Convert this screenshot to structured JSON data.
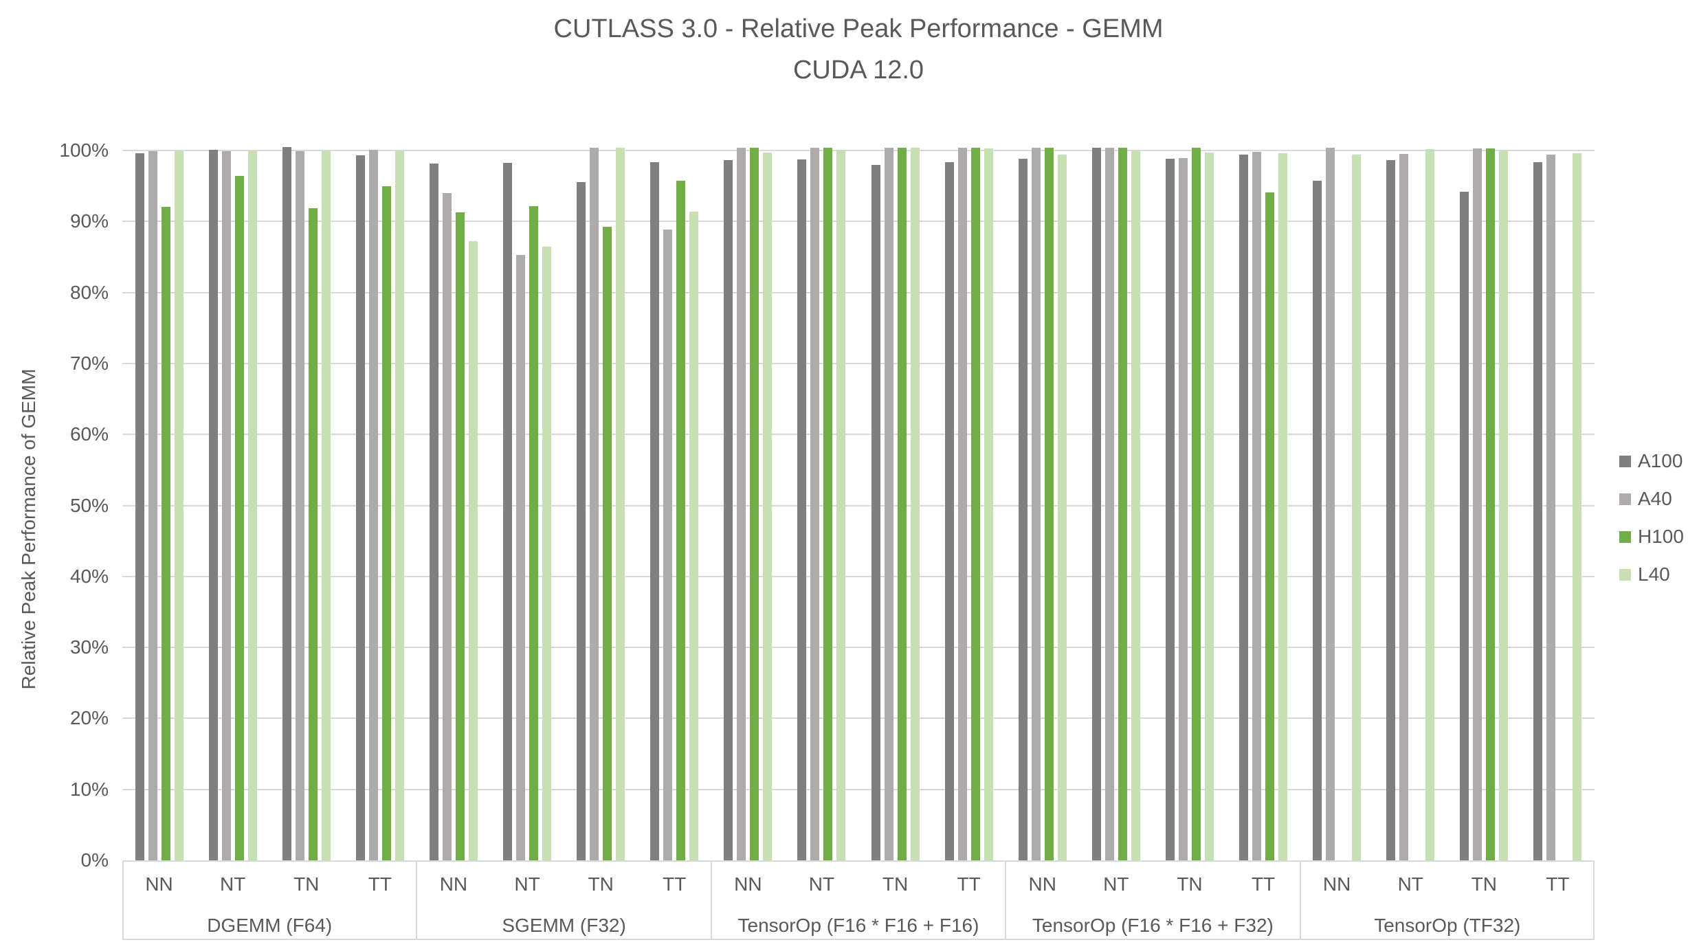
{
  "title": {
    "line1": "CUTLASS 3.0 - Relative Peak Performance - GEMM",
    "line2": "CUDA 12.0"
  },
  "y_axis": {
    "title": "Relative Peak Performance of GEMM",
    "tick_labels": [
      "0%",
      "10%",
      "20%",
      "30%",
      "40%",
      "50%",
      "60%",
      "70%",
      "80%",
      "90%",
      "100%"
    ]
  },
  "legend": [
    {
      "name": "A100",
      "color": "#7f7f7f"
    },
    {
      "name": "A40",
      "color": "#b0abab"
    },
    {
      "name": "H100",
      "color": "#70ad47"
    },
    {
      "name": "L40",
      "color": "#c6e0b4"
    }
  ],
  "chart_data": {
    "type": "bar",
    "title": "CUTLASS 3.0 - Relative Peak Performance - GEMM / CUDA 12.0",
    "xlabel": "",
    "ylabel": "Relative Peak Performance of GEMM",
    "ylim": [
      0,
      100
    ],
    "y_tick_step": 10,
    "grid": true,
    "legend_position": "right",
    "categories": [
      "NN",
      "NT",
      "TN",
      "TT"
    ],
    "series_names": [
      "A100",
      "A40",
      "H100",
      "L40"
    ],
    "groups": [
      {
        "label": "DGEMM (F64)",
        "series": {
          "A100": [
            99.6,
            100.1,
            100.5,
            99.3
          ],
          "A40": [
            99.9,
            99.9,
            99.9,
            100.1
          ],
          "H100": [
            92.1,
            96.4,
            91.9,
            95.0
          ],
          "L40": [
            99.9,
            99.9,
            99.9,
            99.9
          ]
        }
      },
      {
        "label": "SGEMM (F32)",
        "series": {
          "A100": [
            98.2,
            98.3,
            95.5,
            98.4
          ],
          "A40": [
            94.0,
            85.3,
            100.4,
            88.9
          ],
          "H100": [
            91.3,
            92.2,
            89.3,
            95.7
          ],
          "L40": [
            87.2,
            86.4,
            100.4,
            91.4
          ]
        }
      },
      {
        "label": "TensorOp (F16 * F16 + F16)",
        "series": {
          "A100": [
            98.6,
            98.7,
            98.0,
            98.4
          ],
          "A40": [
            100.4,
            100.4,
            100.4,
            100.4
          ],
          "H100": [
            100.4,
            100.4,
            100.4,
            100.4
          ],
          "L40": [
            99.7,
            100.1,
            100.4,
            100.3
          ]
        }
      },
      {
        "label": "TensorOp (F16 * F16 + F32)",
        "series": {
          "A100": [
            98.8,
            100.4,
            98.8,
            99.4
          ],
          "A40": [
            100.4,
            100.4,
            98.9,
            99.8
          ],
          "H100": [
            100.4,
            100.4,
            100.4,
            94.1
          ],
          "L40": [
            99.4,
            100.0,
            99.7,
            99.6
          ]
        }
      },
      {
        "label": "TensorOp (TF32)",
        "series": {
          "A100": [
            95.7,
            98.6,
            94.2,
            98.4
          ],
          "A40": [
            100.4,
            99.5,
            100.3,
            99.4
          ],
          "H100": [
            null,
            null,
            100.3,
            null
          ],
          "L40": [
            99.4,
            100.2,
            100.0,
            99.6
          ]
        }
      }
    ]
  }
}
